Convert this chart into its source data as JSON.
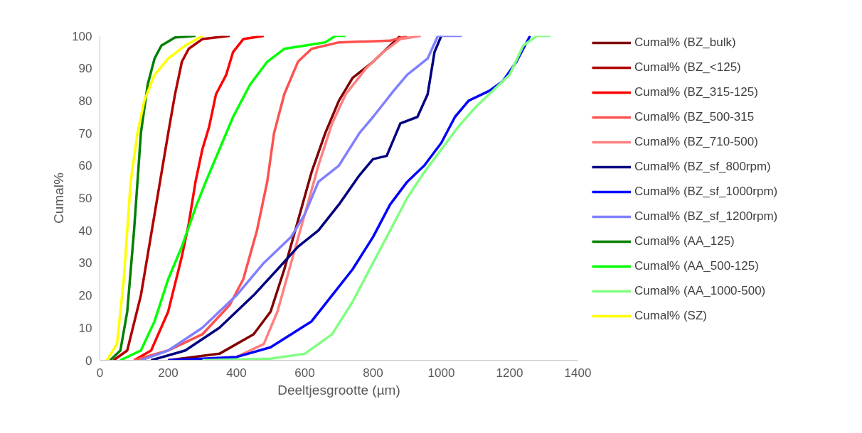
{
  "chart_data": {
    "type": "line",
    "xlabel": "Deeltjesgrootte (µm)",
    "ylabel": "Cumal%",
    "xlim": [
      0,
      1400
    ],
    "ylim": [
      0,
      100
    ],
    "xticks": [
      0,
      200,
      400,
      600,
      800,
      1000,
      1200,
      1400
    ],
    "yticks": [
      0,
      10,
      20,
      30,
      40,
      50,
      60,
      70,
      80,
      90,
      100
    ],
    "grid": false,
    "legend": "right",
    "marker": "none",
    "line_style": "solid",
    "series": [
      {
        "name": "Cumal% (BZ_bulk)",
        "color": "#800000",
        "x": [
          200,
          350,
          450,
          500,
          540,
          580,
          620,
          660,
          700,
          740,
          800,
          840,
          880
        ],
        "values": [
          0,
          2,
          8,
          15,
          28,
          43,
          58,
          70,
          80,
          87,
          92,
          96,
          100
        ]
      },
      {
        "name": "Cumal% (BZ_<125)",
        "color": "#b00000",
        "x": [
          40,
          80,
          120,
          160,
          200,
          220,
          240,
          260,
          300,
          380
        ],
        "values": [
          0,
          3,
          20,
          45,
          70,
          82,
          92,
          96,
          99,
          100
        ]
      },
      {
        "name": "Cumal% (BZ_315-125)",
        "color": "#ff0000",
        "x": [
          100,
          150,
          200,
          240,
          260,
          280,
          300,
          320,
          340,
          370,
          390,
          420,
          480
        ],
        "values": [
          0,
          3,
          15,
          32,
          42,
          55,
          65,
          72,
          82,
          88,
          95,
          99,
          100
        ]
      },
      {
        "name": "Cumal% (BZ_500-315",
        "color": "#ff5050",
        "x": [
          100,
          200,
          300,
          380,
          420,
          460,
          490,
          510,
          540,
          580,
          620,
          700,
          850,
          900
        ],
        "values": [
          0,
          3,
          8,
          17,
          25,
          40,
          55,
          70,
          82,
          92,
          96,
          98,
          98.5,
          100
        ]
      },
      {
        "name": "Cumal% (BZ_710-500)",
        "color": "#ff8080",
        "x": [
          250,
          400,
          480,
          520,
          560,
          600,
          640,
          680,
          720,
          780,
          830,
          880,
          940
        ],
        "values": [
          0,
          1,
          5,
          15,
          30,
          45,
          60,
          73,
          82,
          90,
          95,
          99,
          100
        ]
      },
      {
        "name": "Cumal% (BZ_sf_800rpm)",
        "color": "#000080",
        "x": [
          150,
          250,
          350,
          450,
          520,
          580,
          640,
          700,
          760,
          800,
          840,
          880,
          930,
          960,
          980,
          1000
        ],
        "values": [
          0,
          3,
          10,
          20,
          28,
          35,
          40,
          48,
          57,
          62,
          63,
          73,
          75,
          82,
          95,
          100
        ]
      },
      {
        "name": "Cumal% (BZ_sf_1000rpm)",
        "color": "#0000ff",
        "x": [
          200,
          400,
          500,
          560,
          620,
          680,
          740,
          800,
          850,
          900,
          950,
          1000,
          1040,
          1080,
          1140,
          1180,
          1220,
          1260
        ],
        "values": [
          0,
          1,
          4,
          8,
          12,
          20,
          28,
          38,
          48,
          55,
          60,
          67,
          75,
          80,
          83,
          86,
          92,
          100
        ]
      },
      {
        "name": "Cumal% (BZ_sf_1200rpm)",
        "color": "#8080ff",
        "x": [
          120,
          200,
          300,
          400,
          480,
          560,
          600,
          640,
          700,
          760,
          800,
          860,
          900,
          960,
          990,
          1060
        ],
        "values": [
          0,
          3,
          10,
          20,
          30,
          38,
          45,
          55,
          60,
          70,
          75,
          83,
          88,
          93,
          100,
          100
        ]
      },
      {
        "name": "Cumal% (AA_125)",
        "color": "#008000",
        "x": [
          30,
          60,
          80,
          100,
          120,
          140,
          160,
          180,
          220,
          280
        ],
        "values": [
          0,
          3,
          15,
          40,
          70,
          85,
          93,
          97,
          99.5,
          100
        ]
      },
      {
        "name": "Cumal% (AA_500-125)",
        "color": "#00ff00",
        "x": [
          60,
          120,
          160,
          200,
          240,
          280,
          310,
          350,
          390,
          440,
          490,
          540,
          600,
          660,
          690,
          720
        ],
        "values": [
          0,
          3,
          12,
          25,
          35,
          47,
          55,
          65,
          75,
          85,
          92,
          96,
          97,
          98,
          100,
          100
        ]
      },
      {
        "name": "Cumal% (AA_1000-500)",
        "color": "#80ff80",
        "x": [
          300,
          500,
          600,
          680,
          740,
          800,
          850,
          900,
          950,
          1000,
          1050,
          1100,
          1150,
          1200,
          1240,
          1280,
          1320
        ],
        "values": [
          0,
          0.5,
          2,
          8,
          18,
          30,
          40,
          50,
          58,
          65,
          72,
          78,
          83,
          88,
          97,
          100,
          100
        ]
      },
      {
        "name": "Cumal% (SZ)",
        "color": "#ffff00",
        "x": [
          20,
          50,
          70,
          90,
          110,
          130,
          160,
          200,
          250,
          300
        ],
        "values": [
          0,
          5,
          25,
          55,
          70,
          80,
          88,
          93,
          97,
          100
        ]
      }
    ]
  }
}
